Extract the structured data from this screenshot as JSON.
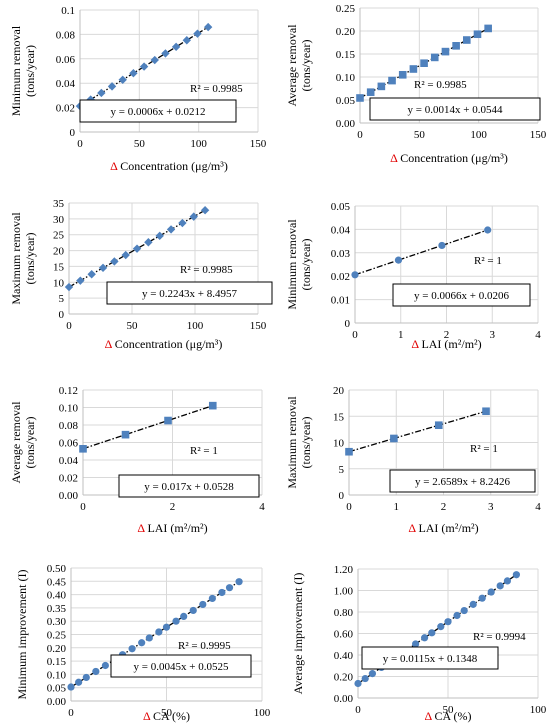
{
  "colors": {
    "marker": "#4f81bd",
    "trend": "#000000",
    "grid": "#d9d9d9",
    "delta": "#e00000"
  },
  "charts": [
    {
      "id": "c1",
      "type": "scatter",
      "marker": "diamond",
      "ylabel_lines": [
        "Minimum removal",
        "(tons/year)"
      ],
      "xlabel_symbol": "Δ",
      "xlabel": " Concentration (μg/m³)",
      "xlim": [
        0,
        150
      ],
      "xticks": [
        0,
        50,
        100,
        150
      ],
      "xtick_labels": [
        "0",
        "50",
        "100",
        "150"
      ],
      "ylim": [
        0,
        0.1
      ],
      "yticks": [
        0,
        0.02,
        0.04,
        0.06,
        0.08,
        0.1
      ],
      "ytick_labels": [
        "0",
        "0.02",
        "0.04",
        "0.06",
        "0.08",
        "0.1"
      ],
      "x": [
        0,
        9,
        18,
        27,
        36,
        45,
        54,
        63,
        72,
        81,
        90,
        99,
        108
      ],
      "slope": 0.0006,
      "intercept": 0.0212,
      "r2": "R² = 0.9985",
      "equation": "y = 0.0006x + 0.0212"
    },
    {
      "id": "c2",
      "type": "scatter",
      "marker": "square",
      "ylabel_lines": [
        "Average removal",
        "(tons/year)"
      ],
      "xlabel_symbol": "Δ",
      "xlabel": " Concentration (μg/m³)",
      "xlim": [
        0,
        150
      ],
      "xticks": [
        0,
        50,
        100,
        150
      ],
      "xtick_labels": [
        "0",
        "50",
        "100",
        "150"
      ],
      "ylim": [
        0,
        0.25
      ],
      "yticks": [
        0,
        0.05,
        0.1,
        0.15,
        0.2,
        0.25
      ],
      "ytick_labels": [
        "0.00",
        "0.05",
        "0.10",
        "0.15",
        "0.20",
        "0.25"
      ],
      "x": [
        0,
        9,
        18,
        27,
        36,
        45,
        54,
        63,
        72,
        81,
        90,
        99,
        108
      ],
      "slope": 0.0014,
      "intercept": 0.0544,
      "r2": "R² = 0.9985",
      "equation": "y = 0.0014x + 0.0544"
    },
    {
      "id": "c3",
      "type": "scatter",
      "marker": "diamond",
      "ylabel_lines": [
        "Maximum removal",
        "(tons/year)"
      ],
      "xlabel_symbol": "Δ",
      "xlabel": " Concentration (μg/m³)",
      "xlim": [
        0,
        150
      ],
      "xticks": [
        0,
        50,
        100,
        150
      ],
      "xtick_labels": [
        "0",
        "50",
        "100",
        "150"
      ],
      "ylim": [
        0,
        35
      ],
      "yticks": [
        0,
        5,
        10,
        15,
        20,
        25,
        30,
        35
      ],
      "ytick_labels": [
        "0",
        "5",
        "10",
        "15",
        "20",
        "25",
        "30",
        "35"
      ],
      "x": [
        0,
        9,
        18,
        27,
        36,
        45,
        54,
        63,
        72,
        81,
        90,
        99,
        108
      ],
      "slope": 0.2243,
      "intercept": 8.4957,
      "r2": "R² = 0.9985",
      "equation": "y = 0.2243x + 8.4957"
    },
    {
      "id": "c4",
      "type": "scatter",
      "marker": "circle",
      "ylabel_lines": [
        "Minimum removal",
        "(tons/year)"
      ],
      "xlabel_symbol": "Δ",
      "xlabel": " LAI (m²/m²)",
      "xlim": [
        0,
        4
      ],
      "xticks": [
        0,
        1,
        2,
        3,
        4
      ],
      "xtick_labels": [
        "0",
        "1",
        "2",
        "3",
        "4"
      ],
      "ylim": [
        0,
        0.05
      ],
      "yticks": [
        0,
        0.01,
        0.02,
        0.03,
        0.04,
        0.05
      ],
      "ytick_labels": [
        "0",
        "0.01",
        "0.02",
        "0.03",
        "0.04",
        "0.05"
      ],
      "x": [
        0,
        0.95,
        1.9,
        2.9
      ],
      "slope": 0.0066,
      "intercept": 0.0206,
      "r2": "R² = 1",
      "equation": "y = 0.0066x + 0.0206"
    },
    {
      "id": "c5",
      "type": "scatter",
      "marker": "square",
      "ylabel_lines": [
        "Average removal",
        "(tons/year)"
      ],
      "xlabel_symbol": "Δ",
      "xlabel": " LAI (m²/m²)",
      "xlim": [
        0,
        4
      ],
      "xticks": [
        0,
        2,
        4
      ],
      "xtick_labels": [
        "0",
        "2",
        "4"
      ],
      "ylim": [
        0,
        0.12
      ],
      "yticks": [
        0,
        0.02,
        0.04,
        0.06,
        0.08,
        0.1,
        0.12
      ],
      "ytick_labels": [
        "0.00",
        "0.02",
        "0.04",
        "0.06",
        "0.08",
        "0.10",
        "0.12"
      ],
      "x": [
        0,
        0.95,
        1.9,
        2.9
      ],
      "slope": 0.017,
      "intercept": 0.0528,
      "r2": "R² = 1",
      "equation": "y = 0.017x + 0.0528"
    },
    {
      "id": "c6",
      "type": "scatter",
      "marker": "square",
      "ylabel_lines": [
        "Maximum removal",
        "(tons/year)"
      ],
      "xlabel_symbol": "Δ",
      "xlabel": " LAI (m²/m²)",
      "xlim": [
        0,
        4
      ],
      "xticks": [
        0,
        1,
        2,
        3,
        4
      ],
      "xtick_labels": [
        "0",
        "1",
        "2",
        "3",
        "4"
      ],
      "ylim": [
        0,
        20
      ],
      "yticks": [
        0,
        5,
        10,
        15,
        20
      ],
      "ytick_labels": [
        "0",
        "5",
        "10",
        "15",
        "20"
      ],
      "x": [
        0,
        0.95,
        1.9,
        2.9
      ],
      "slope": 2.6589,
      "intercept": 8.2426,
      "r2": "R² = 1",
      "equation": "y = 2.6589x + 8.2426"
    },
    {
      "id": "c7",
      "type": "scatter",
      "marker": "circle",
      "ylabel_lines": [
        "Minimum improvement (I)"
      ],
      "xlabel_symbol": "Δ",
      "xlabel": " CA (%)",
      "xlim": [
        0,
        100
      ],
      "xticks": [
        0,
        50,
        100
      ],
      "xtick_labels": [
        "0",
        "50",
        "100"
      ],
      "ylim": [
        0,
        0.5
      ],
      "yticks": [
        0,
        0.05,
        0.1,
        0.15,
        0.2,
        0.25,
        0.3,
        0.35,
        0.4,
        0.45,
        0.5
      ],
      "ytick_labels": [
        "0.00",
        "0.05",
        "0.10",
        "0.15",
        "0.20",
        "0.25",
        "0.30",
        "0.35",
        "0.40",
        "0.45",
        "0.50"
      ],
      "x": [
        0,
        4,
        8,
        13,
        18,
        23,
        27,
        32,
        37,
        41,
        46,
        50,
        55,
        59,
        64,
        69,
        74,
        79,
        83,
        88
      ],
      "slope": 0.0045,
      "intercept": 0.0525,
      "r2": "R² = 0.9995",
      "equation": "y = 0.0045x + 0.0525"
    },
    {
      "id": "c8",
      "type": "scatter",
      "marker": "circle",
      "ylabel_lines": [
        "Average improvement (I)"
      ],
      "xlabel_symbol": "Δ",
      "xlabel": " CA (%)",
      "xlim": [
        0,
        100
      ],
      "xticks": [
        0,
        50,
        100
      ],
      "xtick_labels": [
        "0",
        "50",
        "100"
      ],
      "ylim": [
        0,
        1.2
      ],
      "yticks": [
        0,
        0.2,
        0.4,
        0.6,
        0.8,
        1.0,
        1.2
      ],
      "ytick_labels": [
        "0.00",
        "0.20",
        "0.40",
        "0.60",
        "0.80",
        "1.00",
        "1.20"
      ],
      "x": [
        0,
        4,
        8,
        13,
        18,
        23,
        27,
        32,
        37,
        41,
        46,
        50,
        55,
        59,
        64,
        69,
        74,
        79,
        83,
        88
      ],
      "slope": 0.0115,
      "intercept": 0.1348,
      "r2": "R² = 0.9994",
      "equation": "y = 0.0115x + 0.1348"
    }
  ]
}
